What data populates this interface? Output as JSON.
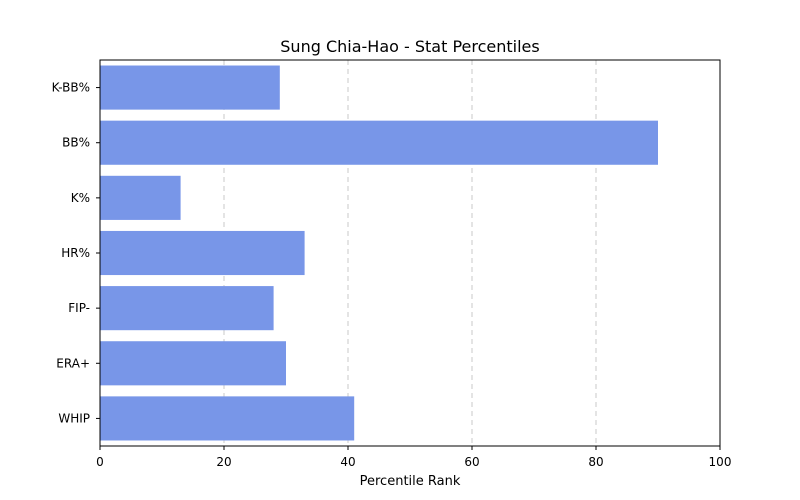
{
  "chart_data": {
    "type": "bar",
    "orientation": "horizontal",
    "title": "Sung Chia-Hao - Stat Percentiles",
    "xlabel": "Percentile Rank",
    "ylabel": "",
    "xlim": [
      0,
      100
    ],
    "xticks": [
      "0",
      "20",
      "40",
      "60",
      "80",
      "100"
    ],
    "categories": [
      "WHIP",
      "ERA+",
      "FIP-",
      "HR%",
      "K%",
      "BB%",
      "K-BB%"
    ],
    "values": [
      41,
      30,
      28,
      33,
      13,
      90,
      29
    ],
    "bar_color": "#7896e8",
    "grid": "x-axis dashed",
    "legend": "none"
  }
}
